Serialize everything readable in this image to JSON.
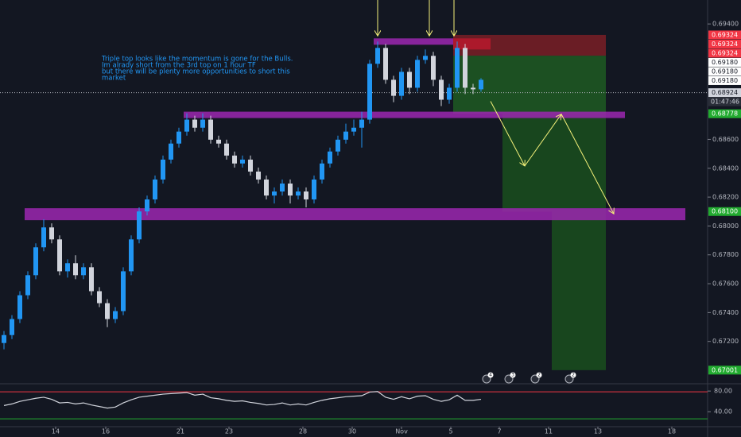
{
  "chart_data": {
    "type": "candlestick",
    "open": [
      0.67189,
      0.67244,
      0.67355,
      0.6752,
      0.67659,
      0.67852,
      0.6799,
      0.67907,
      0.67686,
      0.67742,
      0.67659,
      0.67714,
      0.67548,
      0.67465,
      0.67355,
      0.6741,
      0.67686,
      0.67907,
      0.68101,
      0.68184,
      0.68322,
      0.6846,
      0.68571,
      0.68654,
      0.68737,
      0.68681,
      0.68737,
      0.68598,
      0.68571,
      0.68488,
      0.68433,
      0.6846,
      0.68377,
      0.68322,
      0.68211,
      0.68239,
      0.68294,
      0.68211,
      0.68239,
      0.68184,
      0.68322,
      0.68433,
      0.68516,
      0.68598,
      0.68654,
      0.68681,
      0.68737,
      0.69124,
      0.69234,
      0.69013,
      0.68902,
      0.69068,
      0.68958,
      0.69151,
      0.69179,
      0.69013,
      0.68875,
      0.68958,
      0.69234,
      0.68958,
      0.68947
    ],
    "close": [
      0.67244,
      0.67355,
      0.6752,
      0.67659,
      0.67852,
      0.6799,
      0.67907,
      0.67686,
      0.67742,
      0.67659,
      0.67714,
      0.67548,
      0.67465,
      0.67355,
      0.6741,
      0.67686,
      0.67907,
      0.68101,
      0.68184,
      0.68322,
      0.6846,
      0.68571,
      0.68654,
      0.68737,
      0.68681,
      0.68737,
      0.68598,
      0.68571,
      0.68488,
      0.68433,
      0.6846,
      0.68377,
      0.68322,
      0.68211,
      0.68239,
      0.68294,
      0.68211,
      0.68239,
      0.68184,
      0.68322,
      0.68433,
      0.68516,
      0.68598,
      0.68654,
      0.68681,
      0.68737,
      0.69124,
      0.69234,
      0.69013,
      0.68902,
      0.69068,
      0.68958,
      0.69151,
      0.69179,
      0.69013,
      0.68875,
      0.68958,
      0.69234,
      0.68958,
      0.68947,
      0.69013
    ],
    "high": [
      0.67272,
      0.67382,
      0.67548,
      0.67686,
      0.6788,
      0.68046,
      0.68018,
      0.67935,
      0.67769,
      0.67797,
      0.67742,
      0.67742,
      0.67576,
      0.67493,
      0.67438,
      0.67714,
      0.67935,
      0.68129,
      0.68211,
      0.6835,
      0.68488,
      0.68598,
      0.68681,
      0.68781,
      0.68764,
      0.68781,
      0.68764,
      0.68626,
      0.68598,
      0.68516,
      0.68488,
      0.68488,
      0.68405,
      0.6835,
      0.68267,
      0.68322,
      0.68322,
      0.68267,
      0.68267,
      0.6835,
      0.6846,
      0.68543,
      0.68626,
      0.68709,
      0.68737,
      0.68792,
      0.69151,
      0.69278,
      0.69262,
      0.69041,
      0.69096,
      0.69096,
      0.69179,
      0.69223,
      0.69207,
      0.69041,
      0.68985,
      0.69278,
      0.69262,
      0.68985,
      0.69024
    ],
    "low": [
      0.67145,
      0.67216,
      0.67327,
      0.67493,
      0.67631,
      0.67825,
      0.6788,
      0.67659,
      0.67642,
      0.67631,
      0.67631,
      0.6752,
      0.67438,
      0.67299,
      0.67327,
      0.67382,
      0.67659,
      0.6788,
      0.68073,
      0.68156,
      0.68294,
      0.68433,
      0.68543,
      0.68626,
      0.68654,
      0.68654,
      0.68571,
      0.68543,
      0.6846,
      0.68405,
      0.68405,
      0.6835,
      0.68294,
      0.68184,
      0.68156,
      0.68211,
      0.68156,
      0.68184,
      0.68129,
      0.68156,
      0.68294,
      0.68405,
      0.68488,
      0.68571,
      0.68626,
      0.68543,
      0.68709,
      0.69096,
      0.68985,
      0.68858,
      0.68875,
      0.68914,
      0.6893,
      0.69124,
      0.68969,
      0.68831,
      0.68847,
      0.6893,
      0.68914,
      0.68914,
      0.6893
    ],
    "up_color": "#2196f3",
    "down_color": "#d1d4dc",
    "xlim": [
      -0.5,
      88.5
    ],
    "xticks": [
      {
        "value": 6.5,
        "label": "14"
      },
      {
        "value": 12.8,
        "label": "16"
      },
      {
        "value": 22.2,
        "label": "21"
      },
      {
        "value": 28.3,
        "label": "23"
      },
      {
        "value": 37.6,
        "label": "28"
      },
      {
        "value": 43.8,
        "label": "30"
      },
      {
        "value": 50,
        "label": "Nov"
      },
      {
        "value": 56.2,
        "label": "5"
      },
      {
        "value": 62.3,
        "label": "7"
      },
      {
        "value": 68.5,
        "label": "11"
      },
      {
        "value": 74.7,
        "label": "13"
      },
      {
        "value": 84,
        "label": "18"
      }
    ],
    "ylim": [
      0.66912,
      0.69566
    ],
    "yticks": [
      {
        "value": 0.694,
        "label": "0.69400"
      },
      {
        "value": 0.686,
        "label": "0.68600"
      },
      {
        "value": 0.684,
        "label": "0.68400"
      },
      {
        "value": 0.682,
        "label": "0.68200"
      },
      {
        "value": 0.68,
        "label": "0.68000"
      },
      {
        "value": 0.678,
        "label": "0.67800"
      },
      {
        "value": 0.676,
        "label": "0.67600"
      },
      {
        "value": 0.674,
        "label": "0.67400"
      },
      {
        "value": 0.672,
        "label": "0.67200"
      }
    ],
    "price_labels": [
      {
        "value": 0.69324,
        "label": "0.69324",
        "color": "#f23645"
      },
      {
        "value": 0.69324,
        "label": "0.69324",
        "color": "#f23645"
      },
      {
        "value": 0.69324,
        "label": "0.69324",
        "color": "#f23645"
      },
      {
        "value": 0.6918,
        "label": "0.69180",
        "color": "#ffffff"
      },
      {
        "value": 0.6918,
        "label": "0.69180",
        "color": "#ffffff"
      },
      {
        "value": 0.6918,
        "label": "0.69180",
        "color": "#ffffff"
      },
      {
        "value": 0.68924,
        "label": "0.68924",
        "color": "#d1d4dc"
      },
      {
        "value": 0.68778,
        "label": "0.68778",
        "color": "#22ab30"
      },
      {
        "value": 0.681,
        "label": "0.68100",
        "color": "#22ab30"
      },
      {
        "value": 0.67001,
        "label": "0.67001",
        "color": "#22ab30"
      }
    ],
    "price_line": 0.68924,
    "countdown": "01:47:46",
    "zones": [
      {
        "x0": 46.5,
        "x1": 56.5,
        "top": 0.693,
        "bottom": 0.69256,
        "color": "#9c27b0"
      },
      {
        "x0": 22.6,
        "x1": 78.1,
        "top": 0.68792,
        "bottom": 0.68748,
        "color": "#9c27b0"
      },
      {
        "x0": 2.6,
        "x1": 85.7,
        "top": 0.68123,
        "bottom": 0.6804,
        "color": "#9c27b0"
      }
    ],
    "boxes": [
      {
        "x0": 56.5,
        "x1": 75.7,
        "top": 0.69324,
        "bottom": 0.6918,
        "color": "#7a1f26"
      },
      {
        "x0": 56.5,
        "x1": 61.2,
        "top": 0.693,
        "bottom": 0.69223,
        "color": "#b7192d"
      },
      {
        "x0": 56.5,
        "x1": 75.7,
        "top": 0.6918,
        "bottom": 0.68778,
        "color": "#1e5a22"
      },
      {
        "x0": 62.7,
        "x1": 68.9,
        "top": 0.68778,
        "bottom": 0.681,
        "color": "#1a4f1d"
      },
      {
        "x0": 68.9,
        "x1": 75.7,
        "top": 0.68778,
        "bottom": 0.67001,
        "color": "#1a4f1d"
      }
    ],
    "arrows": [
      {
        "x0": 61.2,
        "y0": 0.68864,
        "x1": 65.5,
        "y1": 0.68416
      },
      {
        "x0": 65.5,
        "y0": 0.68416,
        "x1": 70.1,
        "y1": 0.68775
      },
      {
        "x0": 70.1,
        "y0": 0.68775,
        "x1": 76.7,
        "y1": 0.68084
      },
      {
        "x0": 47.0,
        "y0": 0.69566,
        "x1": 47.0,
        "y1": 0.69317
      },
      {
        "x0": 53.5,
        "y0": 0.69566,
        "x1": 53.5,
        "y1": 0.69317
      },
      {
        "x0": 56.6,
        "y0": 0.69566,
        "x1": 56.6,
        "y1": 0.69317
      }
    ],
    "arrow_color": "#f5f17a",
    "note": [
      "Triple top looks like the momentum is gone for the Bulls.",
      "Im alrady short from the 3rd top on 1 hour TF",
      "but there will be plenty more opportunities to short this",
      "market"
    ],
    "events": [
      {
        "x": 60.7,
        "label": "4"
      },
      {
        "x": 63.5,
        "label": "3"
      },
      {
        "x": 66.8,
        "label": "2"
      },
      {
        "x": 71.1,
        "label": "2"
      }
    ],
    "rsi": [
      52,
      55,
      60,
      63,
      66,
      68,
      64,
      57,
      58,
      55,
      57,
      53,
      50,
      47,
      49,
      57,
      63,
      68,
      70,
      72,
      74,
      75,
      76,
      77,
      72,
      74,
      67,
      65,
      62,
      60,
      61,
      58,
      56,
      53,
      54,
      57,
      53,
      55,
      53,
      58,
      62,
      65,
      67,
      69,
      70,
      71,
      78,
      79,
      68,
      64,
      69,
      65,
      70,
      71,
      64,
      60,
      63,
      72,
      62,
      62,
      64
    ],
    "rsi_ylim": [
      11,
      91
    ],
    "rsi_yticks": [
      {
        "value": 80,
        "label": "80.00"
      },
      {
        "value": 40,
        "label": "40.00"
      }
    ],
    "rsi_levels": [
      {
        "value": 78.5,
        "color": "#f23645"
      },
      {
        "value": 26.2,
        "color": "#22ab30"
      }
    ]
  }
}
